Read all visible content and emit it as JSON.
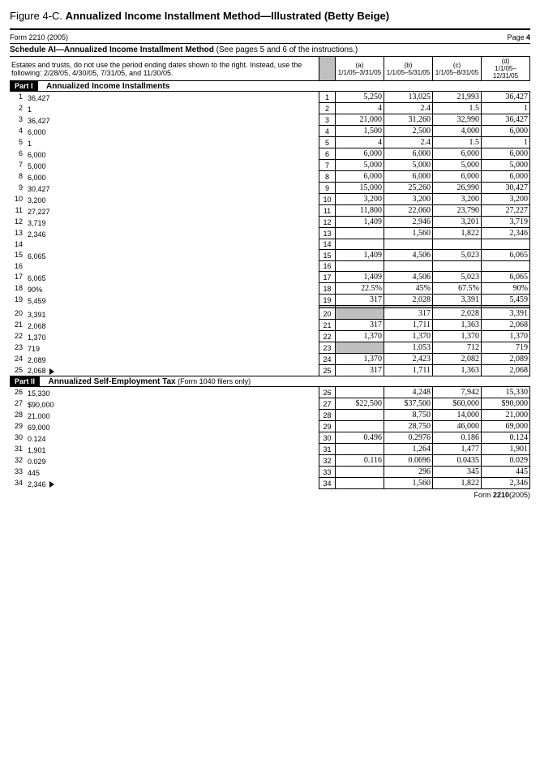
{
  "figure": {
    "label": "Figure 4-C.",
    "title": "Annualized Income Installment Method—Illustrated (Betty Beige)"
  },
  "form": {
    "left": "Form 2210 (2005)",
    "right": "Page 4"
  },
  "schedule": {
    "title_bold": "Schedule AI—Annualized Income Installment Method",
    "title_rest": " (See pages 5 and 6 of the instructions.)"
  },
  "note": "Estates and trusts, do not use the period ending dates shown to the right. Instead, use the following: 2/28/05, 4/30/05, 7/31/05, and 11/30/05.",
  "cols": {
    "a_l": "(a)",
    "a": "1/1/05–3/31/05",
    "b_l": "(b)",
    "b": "1/1/05–5/31/05",
    "c_l": "(c)",
    "c": "1/1/05–8/31/05",
    "d_l": "(d)",
    "d": "1/1/05–12/31/05"
  },
  "part1": {
    "bar": "Part I",
    "title": "Annualized Income Installments"
  },
  "part2": {
    "bar": "Part II",
    "title": "Annualized Self-Employment Tax",
    "suffix": " (Form 1040 filers only)"
  },
  "rows": [
    {
      "n": "1",
      "d": "36,427",
      "ln": "1",
      "a": "5,250",
      "b": "13,025",
      "c": "21,993"
    },
    {
      "n": "2",
      "d": "1",
      "ln": "2",
      "a": "4",
      "b": "2.4",
      "c": "1.5"
    },
    {
      "n": "3",
      "d": "36,427",
      "ln": "3",
      "a": "21,000",
      "b": "31,260",
      "c": "32,990"
    },
    {
      "n": "4",
      "d": "6,000",
      "ln": "4",
      "a": "1,500",
      "b": "2,500",
      "c": "4,000"
    },
    {
      "n": "5",
      "d": "1",
      "ln": "5",
      "a": "4",
      "b": "2.4",
      "c": "1.5"
    },
    {
      "n": "6",
      "d": "6,000",
      "ln": "6",
      "a": "6,000",
      "b": "6,000",
      "c": "6,000"
    },
    {
      "n": "7",
      "d": "5,000",
      "ln": "7",
      "a": "5,000",
      "b": "5,000",
      "c": "5,000"
    },
    {
      "n": "8",
      "d": "6,000",
      "ln": "8",
      "a": "6,000",
      "b": "6,000",
      "c": "6,000"
    },
    {
      "n": "9",
      "d": "30,427",
      "ln": "9",
      "a": "15,000",
      "b": "25,260",
      "c": "26,990"
    },
    {
      "n": "10",
      "d": "3,200",
      "ln": "10",
      "a": "3,200",
      "b": "3,200",
      "c": "3,200"
    },
    {
      "n": "11",
      "d": "27,227",
      "ln": "11",
      "a": "11,800",
      "b": "22,060",
      "c": "23,790"
    },
    {
      "n": "12",
      "d": "3,719",
      "ln": "12",
      "a": "1,409",
      "b": "2,946",
      "c": "3,201"
    },
    {
      "n": "13",
      "d": "2,346",
      "ln": "13",
      "a": "",
      "b": "1,560",
      "c": "1,822"
    },
    {
      "n": "14",
      "d": "",
      "ln": "14",
      "a": "",
      "b": "",
      "c": ""
    },
    {
      "n": "15",
      "d": "6,065",
      "ln": "15",
      "a": "1,409",
      "b": "4,506",
      "c": "5,023"
    },
    {
      "n": "16",
      "d": "",
      "ln": "16",
      "a": "",
      "b": "",
      "c": ""
    },
    {
      "n": "17",
      "d": "6,065",
      "ln": "17",
      "a": "1,409",
      "b": "4,506",
      "c": "5,023"
    },
    {
      "n": "18",
      "d": "90%",
      "ln": "18",
      "a": "22.5%",
      "b": "45%",
      "c": "67.5%"
    },
    {
      "n": "19",
      "d": "5,459",
      "ln": "19",
      "a": "317",
      "b": "2,028",
      "c": "3,391"
    },
    {
      "n": "",
      "d": "",
      "ln": "",
      "a": "",
      "b": "",
      "c": "",
      "shadeAll": true
    },
    {
      "n": "20",
      "d": "3,391",
      "ln": "20",
      "a": "",
      "b": "317",
      "c": "2,028",
      "shadeA": true
    },
    {
      "n": "21",
      "d": "2,068",
      "ln": "21",
      "a": "317",
      "b": "1,711",
      "c": "1,363"
    },
    {
      "n": "22",
      "d": "1,370",
      "ln": "22",
      "a": "1,370",
      "b": "1,370",
      "c": "1,370"
    },
    {
      "n": "23",
      "d": "719",
      "ln": "23",
      "a": "",
      "b": "1,053",
      "c": "712",
      "shadeA": true
    },
    {
      "n": "24",
      "d": "2,089",
      "ln": "24",
      "a": "1,370",
      "b": "2,423",
      "c": "2,082"
    },
    {
      "n": "25",
      "d": "2,068",
      "ln": "25",
      "a": "317",
      "b": "1,711",
      "c": "1,363",
      "arrow": true
    }
  ],
  "rows2": [
    {
      "n": "26",
      "d": "15,330",
      "ln": "26",
      "a": "",
      "b": "4,248",
      "c": "7,942"
    },
    {
      "n": "27",
      "d": "$90,000",
      "ln": "27",
      "a": "$22,500",
      "b": "$37,500",
      "c": "$60,000"
    },
    {
      "n": "28",
      "d": "21,000",
      "ln": "28",
      "a": "",
      "b": "8,750",
      "c": "14,000"
    },
    {
      "n": "29",
      "d": "69,000",
      "ln": "29",
      "a": "",
      "b": "28,750",
      "c": "46,000"
    },
    {
      "n": "30",
      "d": "0.124",
      "ln": "30",
      "a": "0.496",
      "b": "0.2976",
      "c": "0.186"
    },
    {
      "n": "31",
      "d": "1,901",
      "ln": "31",
      "a": "",
      "b": "1,264",
      "c": "1,477"
    },
    {
      "n": "32",
      "d": "0.029",
      "ln": "32",
      "a": "0.116",
      "b": "0.0696",
      "c": "0.0435"
    },
    {
      "n": "33",
      "d": "445",
      "ln": "33",
      "a": "",
      "b": "296",
      "c": "345"
    },
    {
      "n": "34",
      "d": "2,346",
      "ln": "34",
      "a": "",
      "b": "1,560",
      "c": "1,822",
      "arrow": true
    }
  ],
  "footer": {
    "text": "Form ",
    "form": "2210",
    "suffix": " (2005)"
  }
}
